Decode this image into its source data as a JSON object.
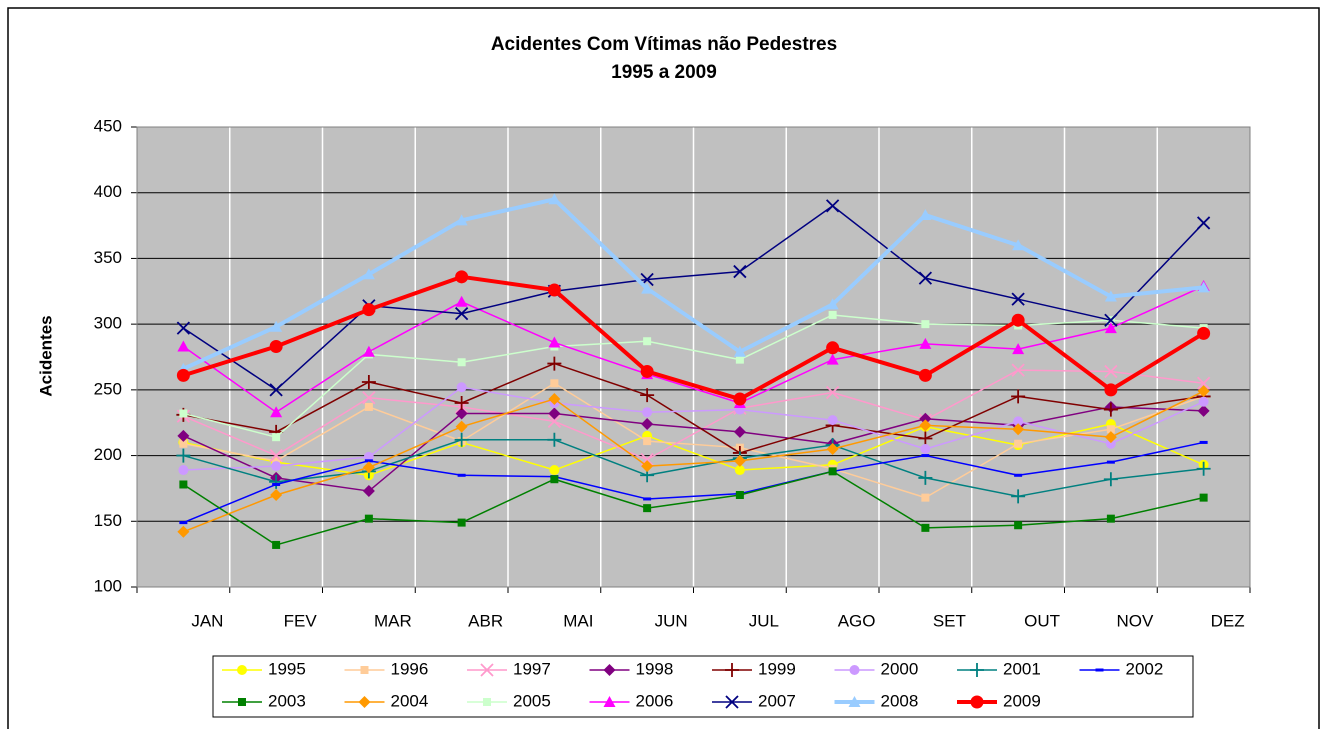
{
  "chart_data": {
    "type": "line",
    "title": "Acidentes Com Vítimas não Pedestres",
    "subtitle": "1995 a 2009",
    "ylabel": "Acidentes",
    "categories": [
      "JAN",
      "FEV",
      "MAR",
      "ABR",
      "MAI",
      "JUN",
      "JUL",
      "AGO",
      "SET",
      "OUT",
      "NOV",
      "DEZ"
    ],
    "ylim": [
      100,
      450
    ],
    "yticks": [
      100,
      150,
      200,
      250,
      300,
      350,
      400,
      450
    ],
    "grid": true,
    "series": [
      {
        "name": "1995",
        "color": "#ffff00",
        "marker": "circle",
        "values": [
          210,
          195,
          185,
          210,
          189,
          215,
          189,
          193,
          222,
          208,
          224,
          193
        ]
      },
      {
        "name": "1996",
        "color": "#ffcc99",
        "marker": "square",
        "values": [
          209,
          196,
          237,
          211,
          255,
          211,
          206,
          190,
          168,
          209,
          220,
          245
        ]
      },
      {
        "name": "1997",
        "color": "#ff99cc",
        "marker": "x",
        "values": [
          230,
          200,
          244,
          237,
          226,
          197,
          236,
          248,
          227,
          265,
          264,
          255
        ]
      },
      {
        "name": "1998",
        "color": "#800080",
        "marker": "diamond",
        "values": [
          215,
          183,
          173,
          232,
          232,
          224,
          218,
          209,
          228,
          223,
          237,
          234
        ]
      },
      {
        "name": "1999",
        "color": "#800000",
        "marker": "plus",
        "values": [
          231,
          218,
          256,
          240,
          270,
          246,
          202,
          223,
          213,
          245,
          235,
          245
        ]
      },
      {
        "name": "2000",
        "color": "#cc99ff",
        "marker": "circle",
        "values": [
          189,
          192,
          199,
          252,
          240,
          233,
          235,
          227,
          205,
          226,
          209,
          241
        ]
      },
      {
        "name": "2001",
        "color": "#008080",
        "marker": "plus",
        "values": [
          200,
          180,
          188,
          212,
          212,
          185,
          198,
          208,
          183,
          169,
          182,
          190
        ]
      },
      {
        "name": "2002",
        "color": "#0000ff",
        "marker": "dash",
        "values": [
          149,
          178,
          196,
          185,
          184,
          167,
          171,
          188,
          200,
          185,
          195,
          210
        ]
      },
      {
        "name": "2003",
        "color": "#008000",
        "marker": "square",
        "values": [
          178,
          132,
          152,
          149,
          182,
          160,
          170,
          188,
          145,
          147,
          152,
          168
        ]
      },
      {
        "name": "2004",
        "color": "#ff9900",
        "marker": "diamond",
        "values": [
          142,
          170,
          191,
          222,
          243,
          192,
          196,
          205,
          223,
          220,
          214,
          249
        ]
      },
      {
        "name": "2005",
        "color": "#ccffcc",
        "marker": "square",
        "values": [
          232,
          214,
          277,
          271,
          283,
          287,
          273,
          307,
          300,
          299,
          303,
          297
        ]
      },
      {
        "name": "2006",
        "color": "#ff00ff",
        "marker": "triangle",
        "values": [
          283,
          233,
          279,
          317,
          286,
          262,
          240,
          273,
          285,
          281,
          297,
          329
        ]
      },
      {
        "name": "2007",
        "color": "#000080",
        "marker": "x",
        "values": [
          297,
          250,
          314,
          308,
          325,
          334,
          340,
          390,
          335,
          319,
          303,
          377
        ]
      },
      {
        "name": "2008",
        "color": "#99ccff",
        "marker": "triangle",
        "line_width": 4,
        "values": [
          266,
          298,
          338,
          379,
          395,
          327,
          279,
          315,
          383,
          360,
          321,
          328
        ]
      },
      {
        "name": "2009",
        "color": "#ff0000",
        "marker": "circle",
        "line_width": 4,
        "values": [
          261,
          283,
          311,
          336,
          326,
          264,
          243,
          282,
          261,
          303,
          250,
          293
        ]
      }
    ]
  }
}
